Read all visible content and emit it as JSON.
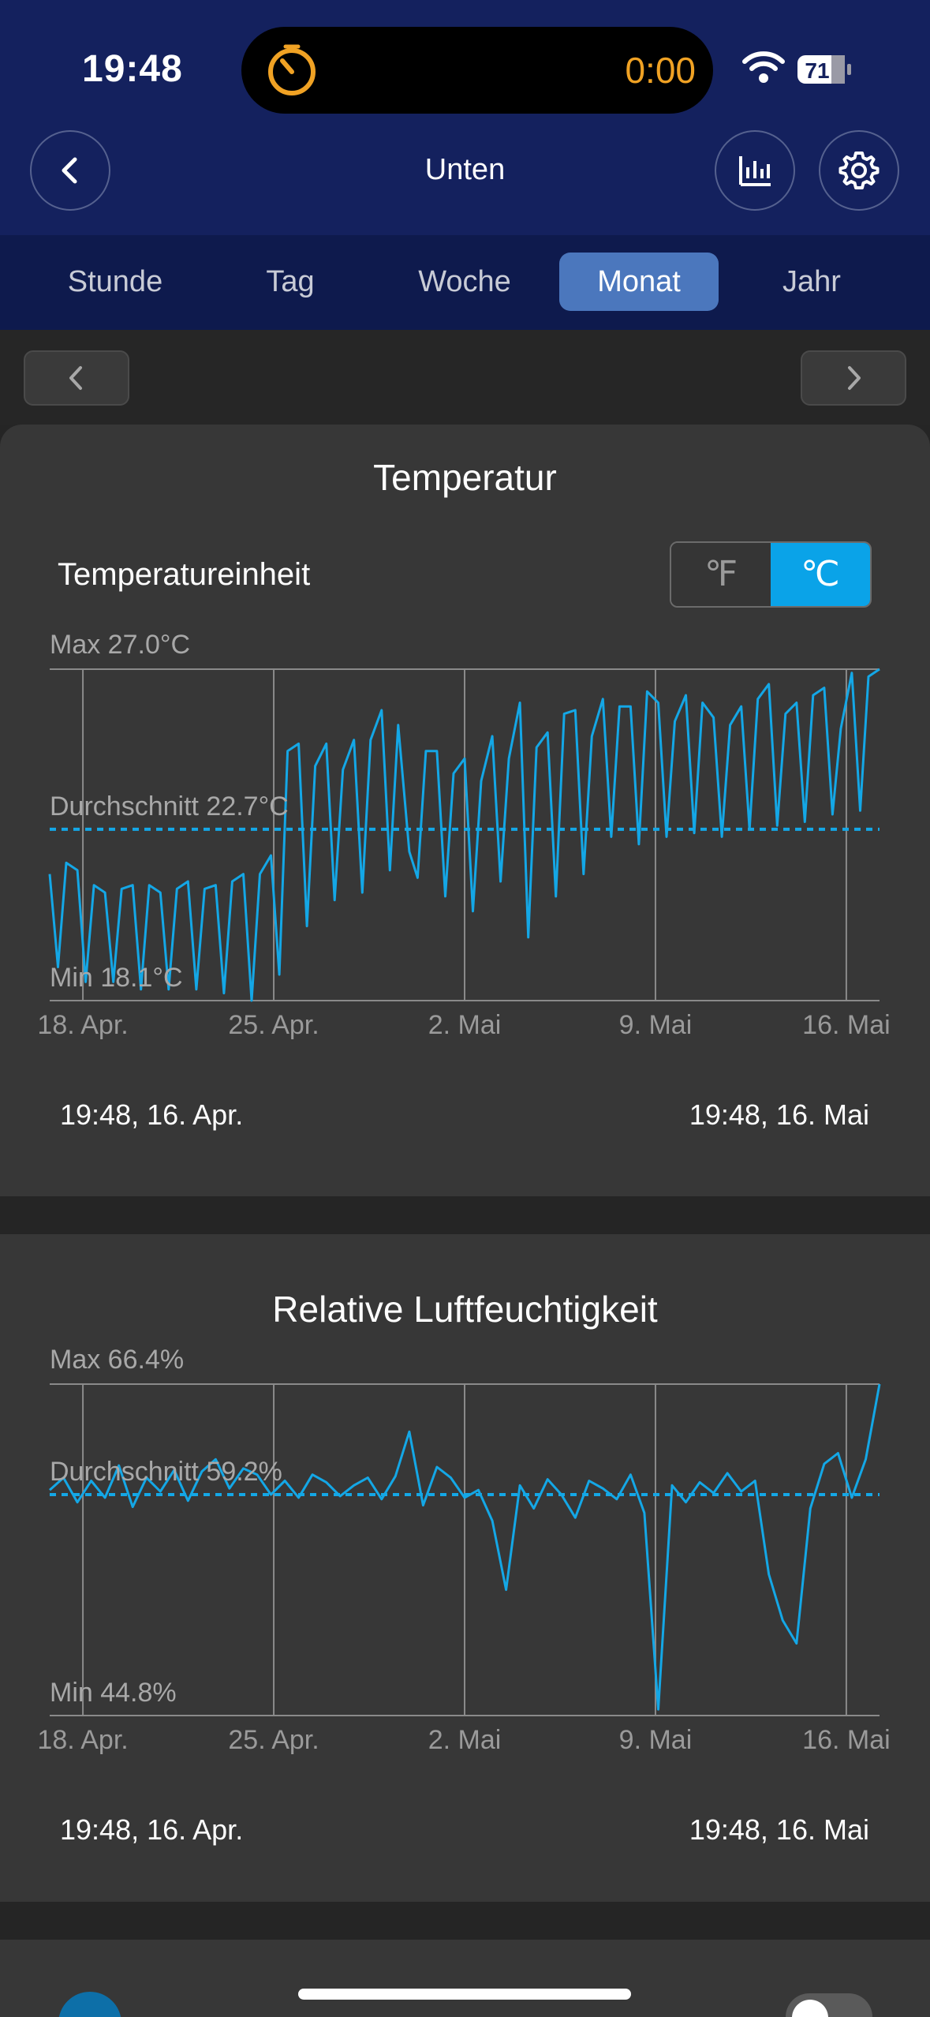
{
  "status": {
    "time": "19:48",
    "timer": "0:00",
    "battery": "71"
  },
  "nav": {
    "title": "Unten"
  },
  "tabs": [
    {
      "label": "Stunde",
      "active": false
    },
    {
      "label": "Tag",
      "active": false
    },
    {
      "label": "Woche",
      "active": false
    },
    {
      "label": "Monat",
      "active": true
    },
    {
      "label": "Jahr",
      "active": false
    }
  ],
  "temperature": {
    "title": "Temperatur",
    "unit_label": "Temperatureinheit",
    "unit_f": "℉",
    "unit_c": "℃",
    "selected_unit": "C",
    "range_start": "19:48,  16. Apr.",
    "range_end": "19:48,  16. Mai"
  },
  "humidity": {
    "title": "Relative Luftfeuchtigkeit",
    "range_start": "19:48,  16. Apr.",
    "range_end": "19:48,  16. Mai"
  },
  "chart_data": [
    {
      "type": "line",
      "title": "Temperatur",
      "max_label": "Max 27.0°C",
      "avg_label": "Durchschnitt 22.7°C",
      "min_label": "Min 18.1°C",
      "ylim": [
        18.1,
        27.0
      ],
      "average": 22.7,
      "x_ticks": [
        "18. Apr.",
        "25. Apr.",
        "2. Mai",
        "9. Mai",
        "16. Mai"
      ],
      "x_range_days": [
        0,
        30
      ],
      "color": "#14a7e6",
      "x": [
        0,
        0.3,
        0.6,
        1,
        1.3,
        1.6,
        2,
        2.3,
        2.6,
        3,
        3.3,
        3.6,
        4,
        4.3,
        4.6,
        5,
        5.3,
        5.6,
        6,
        6.3,
        6.6,
        7,
        7.3,
        7.6,
        8,
        8.3,
        8.6,
        9,
        9.3,
        9.6,
        10,
        10.3,
        10.6,
        11,
        11.3,
        11.6,
        12,
        12.3,
        12.6,
        13,
        13.3,
        13.6,
        14,
        14.3,
        14.6,
        15,
        15.3,
        15.6,
        16,
        16.3,
        16.6,
        17,
        17.3,
        17.6,
        18,
        18.3,
        18.6,
        19,
        19.3,
        19.6,
        20,
        20.3,
        20.6,
        21,
        21.3,
        21.6,
        22,
        22.3,
        22.6,
        23,
        23.3,
        23.6,
        24,
        24.3,
        24.6,
        25,
        25.3,
        25.6,
        26,
        26.3,
        26.6,
        27,
        27.3,
        27.6,
        28,
        28.3,
        28.6,
        29,
        29.3,
        29.6,
        30
      ],
      "y": [
        21.5,
        19.0,
        21.8,
        21.6,
        18.6,
        21.2,
        21.0,
        18.6,
        21.1,
        21.2,
        18.4,
        21.2,
        21.0,
        18.4,
        21.1,
        21.3,
        18.4,
        21.1,
        21.2,
        18.3,
        21.3,
        21.5,
        18.1,
        21.5,
        22.0,
        18.8,
        24.8,
        25.0,
        20.1,
        24.4,
        25.0,
        20.8,
        24.3,
        25.1,
        21.0,
        25.1,
        25.9,
        21.6,
        25.5,
        22.1,
        21.4,
        24.8,
        24.8,
        20.9,
        24.2,
        24.6,
        20.5,
        24.0,
        25.2,
        21.3,
        24.6,
        26.1,
        19.8,
        24.9,
        25.3,
        20.9,
        25.8,
        25.9,
        21.5,
        25.2,
        26.2,
        22.5,
        26.0,
        26.0,
        22.3,
        26.4,
        26.1,
        22.5,
        25.6,
        26.3,
        22.6,
        26.1,
        25.7,
        22.5,
        25.5,
        26.0,
        22.7,
        26.2,
        26.6,
        22.8,
        25.8,
        26.1,
        22.9,
        26.3,
        26.5,
        23.1,
        25.4,
        26.9,
        23.2,
        26.8,
        27.0
      ]
    },
    {
      "type": "line",
      "title": "Relative Luftfeuchtigkeit",
      "max_label": "Max 66.4%",
      "avg_label": "Durchschnitt 59.2%",
      "min_label": "Min 44.8%",
      "ylim": [
        44.8,
        66.4
      ],
      "average": 59.2,
      "x_ticks": [
        "18. Apr.",
        "25. Apr.",
        "2. Mai",
        "9. Mai",
        "16. Mai"
      ],
      "x_range_days": [
        0,
        30
      ],
      "color": "#14a7e6",
      "x": [
        0,
        0.5,
        1,
        1.5,
        2,
        2.5,
        3,
        3.5,
        4,
        4.5,
        5,
        5.5,
        6,
        6.5,
        7,
        7.5,
        8,
        8.5,
        9,
        9.5,
        10,
        10.5,
        11,
        11.5,
        12,
        12.5,
        13,
        13.5,
        14,
        14.5,
        15,
        15.5,
        16,
        16.5,
        17,
        17.5,
        18,
        18.5,
        19,
        19.5,
        20,
        20.5,
        21,
        21.5,
        22,
        22.5,
        23,
        23.5,
        24,
        24.5,
        25,
        25.5,
        26,
        26.5,
        27,
        27.5,
        28,
        28.5,
        29,
        29.5,
        30
      ],
      "y": [
        59.5,
        60.3,
        58.7,
        60.1,
        59.0,
        61.1,
        58.4,
        60.3,
        59.4,
        60.8,
        58.8,
        60.7,
        61.5,
        59.6,
        60.9,
        60.5,
        59.2,
        60.1,
        59.0,
        60.5,
        60.0,
        59.1,
        59.8,
        60.3,
        58.9,
        60.4,
        63.3,
        58.5,
        61.0,
        60.3,
        59.0,
        59.5,
        57.5,
        53.0,
        59.8,
        58.3,
        60.2,
        59.2,
        57.7,
        60.1,
        59.6,
        58.9,
        60.5,
        58.0,
        45.2,
        59.8,
        58.7,
        60.0,
        59.3,
        60.6,
        59.4,
        60.1,
        54.0,
        51.0,
        49.5,
        58.3,
        61.2,
        61.9,
        59.0,
        61.5,
        66.4
      ]
    }
  ]
}
